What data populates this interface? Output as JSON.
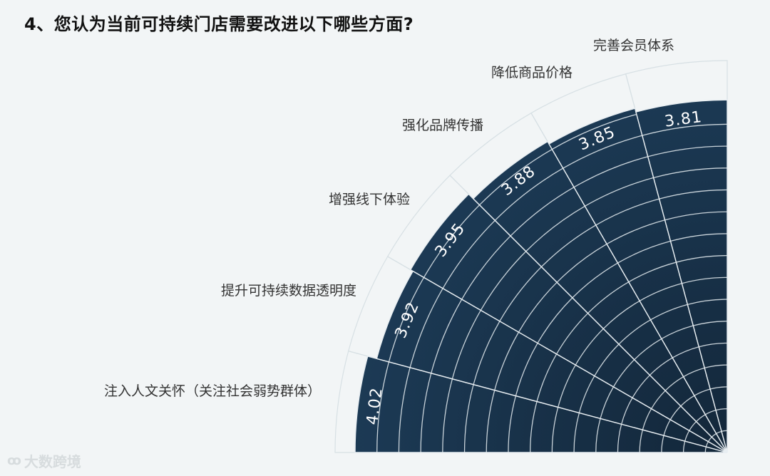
{
  "title": "4、您认为当前可持续门店需要改进以下哪些方面?",
  "watermark": {
    "text": "大数跨境"
  },
  "colors": {
    "background": "#f2f5f6",
    "bar_outer": "#1c3a55",
    "bar_inner": "#13273a",
    "grid_line": "#d7e0e4",
    "bar_grid_line": "#e8eef2",
    "label_text": "#333333",
    "value_text": "#ffffff"
  },
  "chart_data": {
    "type": "bar",
    "variant": "radial (polar bar, quarter circle)",
    "categories": [
      "注入人文关怀（关注社会弱势群体）",
      "提升可持续数据透明度",
      "增强线下体验",
      "强化品牌传播",
      "降低商品价格",
      "完善会员体系"
    ],
    "values": [
      4.02,
      3.92,
      3.95,
      3.88,
      3.85,
      3.81
    ],
    "value_labels": [
      "4.02",
      "3.92",
      "3.95",
      "3.88",
      "3.85",
      "3.81"
    ],
    "title": "",
    "grid": true,
    "data_labels": "inside bar end, rotated along radius"
  }
}
